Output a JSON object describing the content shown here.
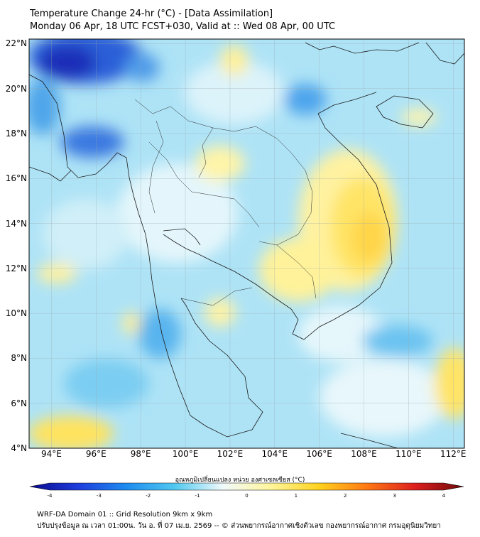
{
  "header": {
    "title": "Temperature Change 24-hr (°C) - [Data Assimilation]",
    "subtitle": "Monday 06 Apr, 18 UTC FCST+030, Valid at :: Wed 08 Apr, 00 UTC"
  },
  "map": {
    "lon_ticks": [
      "94°E",
      "96°E",
      "98°E",
      "100°E",
      "102°E",
      "104°E",
      "106°E",
      "108°E",
      "110°E",
      "112°E"
    ],
    "lat_ticks": [
      "22°N",
      "20°N",
      "18°N",
      "16°N",
      "14°N",
      "12°N",
      "10°N",
      "8°N",
      "6°N",
      "4°N"
    ],
    "lon_range": [
      93,
      112.5
    ],
    "lat_range": [
      4,
      22.2
    ]
  },
  "colorbar": {
    "label": "อุณหภูมิเปลี่ยนแปลง หน่วย องศาเซลเซียส (°C)",
    "ticks": [
      "-4",
      "-3",
      "-2",
      "-1",
      "0",
      "1",
      "2",
      "3",
      "4"
    ],
    "range": [
      -4,
      4
    ],
    "colors": [
      "#0a0a8c",
      "#1e3cdc",
      "#1e8cf0",
      "#50c8f0",
      "#f0fafc",
      "#fff59b",
      "#ffd21e",
      "#ff7814",
      "#dc1e1e",
      "#6e0a0a"
    ]
  },
  "footer": {
    "line1": "WRF-DA Domain 01 :: Grid Resolution 9km x 9km",
    "line2": "ปรับปรุงข้อมูล ณ เวลา 01:00น. วัน อ. ที่ 07 เม.ย. 2569 -- © ส่วนพยากรณ์อากาศเชิงตัวเลข กองพยากรณ์อากาศ กรมอุตุนิยมวิทยา"
  }
}
